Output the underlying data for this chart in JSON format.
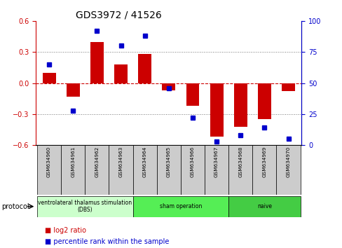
{
  "title": "GDS3972 / 41526",
  "samples": [
    "GSM634960",
    "GSM634961",
    "GSM634962",
    "GSM634963",
    "GSM634964",
    "GSM634965",
    "GSM634966",
    "GSM634967",
    "GSM634968",
    "GSM634969",
    "GSM634970"
  ],
  "log2_ratio": [
    0.1,
    -0.13,
    0.4,
    0.18,
    0.28,
    -0.07,
    -0.22,
    -0.52,
    -0.42,
    -0.35,
    -0.08
  ],
  "percentile_rank": [
    65,
    28,
    92,
    80,
    88,
    46,
    22,
    3,
    8,
    14,
    5
  ],
  "groups": [
    {
      "label": "ventrolateral thalamus stimulation\n(DBS)",
      "start": 0,
      "end": 3,
      "color": "#ccffcc"
    },
    {
      "label": "sham operation",
      "start": 4,
      "end": 7,
      "color": "#55ee55"
    },
    {
      "label": "naive",
      "start": 8,
      "end": 10,
      "color": "#44cc44"
    }
  ],
  "bar_color": "#cc0000",
  "dot_color": "#0000cc",
  "ylim_left": [
    -0.6,
    0.6
  ],
  "ylim_right": [
    0,
    100
  ],
  "yticks_left": [
    -0.6,
    -0.3,
    0.0,
    0.3,
    0.6
  ],
  "yticks_right": [
    0,
    25,
    50,
    75,
    100
  ],
  "hline_color": "#cc0000",
  "dotted_color": "#777777",
  "background_color": "#ffffff",
  "label_bg": "#cccccc",
  "bar_width": 0.55
}
